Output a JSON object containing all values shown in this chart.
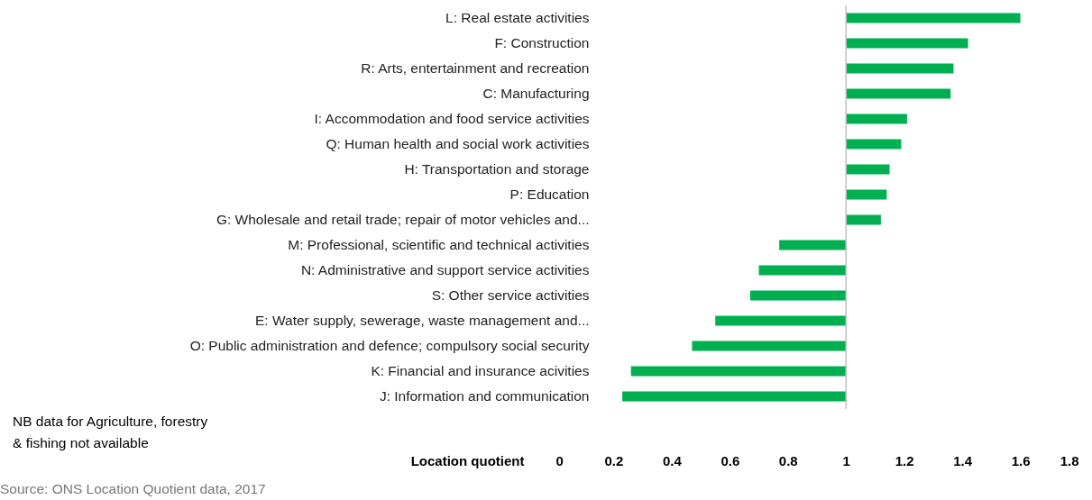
{
  "chart_data": {
    "type": "bar",
    "orientation": "horizontal",
    "xlabel": "Location quotient",
    "categories": [
      "L: Real estate activities",
      "F: Construction",
      "R: Arts, entertainment and recreation",
      "C: Manufacturing",
      "I: Accommodation and food service activities",
      "Q: Human health and social work activities",
      "H: Transportation and storage",
      "P: Education",
      "G: Wholesale and retail trade; repair of motor vehicles and...",
      "M: Professional, scientific and technical activities",
      "N: Administrative and support service activities",
      "S: Other service activities",
      "E: Water supply, sewerage, waste management and...",
      "O: Public administration and defence; compulsory social security",
      "K: Financial and insurance acivities",
      "J: Information and communication"
    ],
    "base": [
      1,
      1,
      1,
      1,
      1,
      1,
      1,
      1,
      1,
      1,
      1,
      1,
      1,
      1,
      1,
      1
    ],
    "values": [
      0.6,
      0.42,
      0.37,
      0.36,
      0.21,
      0.19,
      0.15,
      0.14,
      0.12,
      -0.23,
      -0.3,
      -0.33,
      -0.45,
      -0.53,
      -0.74,
      -0.77
    ],
    "color": "#00b050",
    "xlim": [
      0,
      1.8
    ],
    "xticks": [
      0,
      0.2,
      0.4,
      0.6,
      0.8,
      1,
      1.2,
      1.4,
      1.6,
      1.8
    ],
    "ref_lines": [
      {
        "axis": "x",
        "value": 1,
        "color": "#bfbfbf"
      }
    ],
    "grid": false,
    "annotations": [
      "NB data for Agriculture, forestry\n& fishing not available",
      "Source: ONS Location Quotient data, 2017"
    ]
  }
}
